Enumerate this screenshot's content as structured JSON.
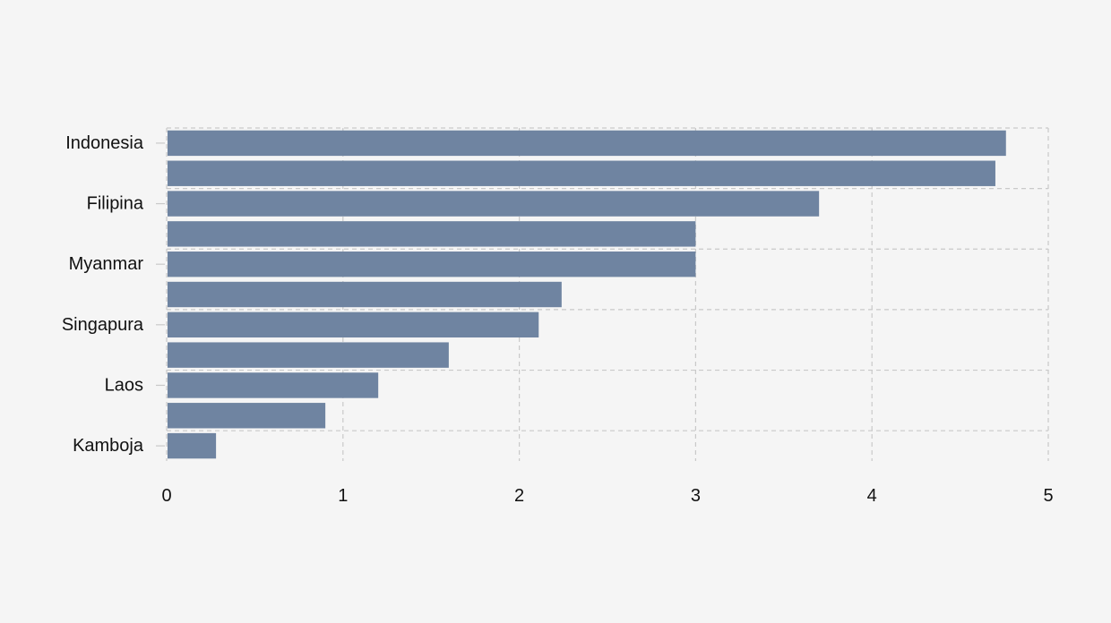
{
  "chart_data": {
    "type": "bar",
    "orientation": "horizontal",
    "categories": [
      "Indonesia",
      "",
      "Filipina",
      "",
      "Myanmar",
      "",
      "Singapura",
      "",
      "Laos",
      "",
      "Kamboja"
    ],
    "values": [
      4.76,
      4.7,
      3.7,
      3.0,
      3.0,
      2.24,
      2.11,
      1.6,
      1.2,
      0.9,
      0.28
    ],
    "xlim": [
      0,
      5
    ],
    "xticks": [
      0,
      1,
      2,
      3,
      4,
      5
    ],
    "xtick_labels": [
      "0",
      "1",
      "2",
      "3",
      "4",
      "5"
    ],
    "title": "",
    "xlabel": "",
    "ylabel": "",
    "grid": true,
    "legend": "none",
    "colors": {
      "bar": "#6f84a1",
      "grid": "#c9c9c9",
      "background": "#f5f5f5",
      "text": "#111111"
    }
  }
}
